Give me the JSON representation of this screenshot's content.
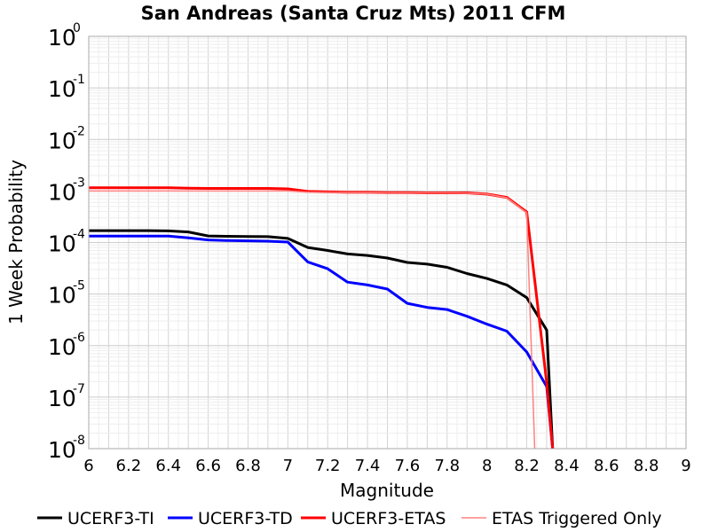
{
  "chart_data": {
    "type": "line",
    "title": "San Andreas (Santa Cruz Mts) 2011 CFM",
    "xlabel": "Magnitude",
    "ylabel": "1 Week Probability",
    "xlim": [
      6,
      9
    ],
    "ylim": [
      1e-08,
      1
    ],
    "yscale": "log",
    "grid": true,
    "legend_position": "bottom",
    "x_ticks": [
      "6",
      "6.2",
      "6.4",
      "6.6",
      "6.8",
      "7",
      "7.2",
      "7.4",
      "7.6",
      "7.8",
      "8",
      "8.2",
      "8.4",
      "8.6",
      "8.8",
      "9"
    ],
    "y_ticks": [
      {
        "base": "10",
        "exp": "0"
      },
      {
        "base": "10",
        "exp": "-1"
      },
      {
        "base": "10",
        "exp": "-2"
      },
      {
        "base": "10",
        "exp": "-3"
      },
      {
        "base": "10",
        "exp": "-4"
      },
      {
        "base": "10",
        "exp": "-5"
      },
      {
        "base": "10",
        "exp": "-6"
      },
      {
        "base": "10",
        "exp": "-7"
      },
      {
        "base": "10",
        "exp": "-8"
      }
    ],
    "series": [
      {
        "name": "UCERF3-TI",
        "color": "#000000",
        "width": 3,
        "x": [
          6.0,
          6.1,
          6.2,
          6.3,
          6.4,
          6.5,
          6.6,
          6.7,
          6.8,
          6.9,
          7.0,
          7.1,
          7.2,
          7.3,
          7.4,
          7.5,
          7.6,
          7.7,
          7.8,
          7.9,
          8.0,
          8.1,
          8.2,
          8.3,
          8.33
        ],
        "y": [
          0.00017,
          0.00017,
          0.00017,
          0.00017,
          0.000168,
          0.00016,
          0.000134,
          0.000132,
          0.000131,
          0.00013,
          0.00012,
          8e-05,
          7e-05,
          6e-05,
          5.6e-05,
          5e-05,
          4.1e-05,
          3.8e-05,
          3.3e-05,
          2.5e-05,
          2e-05,
          1.5e-05,
          8.5e-06,
          2e-06,
          1e-08
        ]
      },
      {
        "name": "UCERF3-TD",
        "color": "#0000ff",
        "width": 3,
        "x": [
          6.0,
          6.1,
          6.2,
          6.3,
          6.4,
          6.5,
          6.6,
          6.7,
          6.8,
          6.9,
          7.0,
          7.1,
          7.2,
          7.3,
          7.4,
          7.5,
          7.6,
          7.7,
          7.8,
          7.9,
          8.0,
          8.1,
          8.2,
          8.3,
          8.33
        ],
        "y": [
          0.000133,
          0.000133,
          0.000133,
          0.000133,
          0.000133,
          0.000123,
          0.000112,
          0.000109,
          0.000108,
          0.000106,
          0.000102,
          4.2e-05,
          3.1e-05,
          1.7e-05,
          1.5e-05,
          1.25e-05,
          6.6e-06,
          5.5e-06,
          5e-06,
          3.7e-06,
          2.6e-06,
          1.9e-06,
          7.5e-07,
          1.6e-07,
          1e-08
        ]
      },
      {
        "name": "UCERF3-ETAS",
        "color": "#ff0000",
        "width": 3,
        "x": [
          6.0,
          6.1,
          6.2,
          6.3,
          6.4,
          6.5,
          6.6,
          6.7,
          6.8,
          6.9,
          7.0,
          7.1,
          7.2,
          7.3,
          7.4,
          7.5,
          7.6,
          7.7,
          7.8,
          7.9,
          8.0,
          8.1,
          8.2,
          8.3,
          8.33
        ],
        "y": [
          0.00115,
          0.00115,
          0.00115,
          0.00115,
          0.00115,
          0.00113,
          0.00112,
          0.00112,
          0.00112,
          0.00112,
          0.0011,
          0.00098,
          0.00096,
          0.00094,
          0.00094,
          0.00093,
          0.00093,
          0.00092,
          0.00092,
          0.00092,
          0.00087,
          0.00075,
          0.00039,
          1.9e-07,
          1e-08
        ]
      },
      {
        "name": "ETAS Triggered Only",
        "color": "#ff8080",
        "width": 1.5,
        "x": [
          6.0,
          6.1,
          6.2,
          6.3,
          6.4,
          6.5,
          6.6,
          6.7,
          6.8,
          6.9,
          7.0,
          7.1,
          7.2,
          7.3,
          7.4,
          7.5,
          7.6,
          7.7,
          7.8,
          7.9,
          8.0,
          8.1,
          8.2,
          8.24
        ],
        "y": [
          0.001,
          0.001,
          0.001,
          0.001,
          0.001,
          0.001,
          0.001,
          0.001,
          0.001,
          0.001,
          0.001,
          0.00095,
          0.00094,
          0.00093,
          0.00093,
          0.00092,
          0.00092,
          0.00092,
          0.00092,
          0.00091,
          0.00087,
          0.00074,
          0.00038,
          1e-08
        ]
      }
    ]
  }
}
